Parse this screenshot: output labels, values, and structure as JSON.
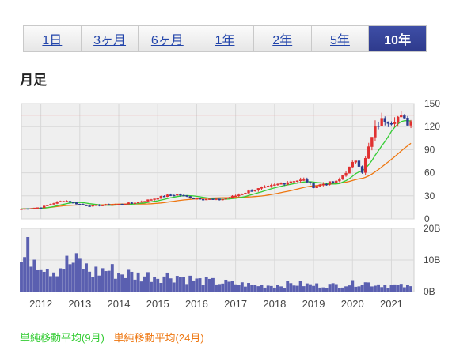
{
  "tabs": [
    {
      "label": "1日",
      "active": false
    },
    {
      "label": "3ヶ月",
      "active": false
    },
    {
      "label": "6ヶ月",
      "active": false
    },
    {
      "label": "1年",
      "active": false
    },
    {
      "label": "2年",
      "active": false
    },
    {
      "label": "5年",
      "active": false
    },
    {
      "label": "10年",
      "active": true
    }
  ],
  "section_title": "月足",
  "colors": {
    "candle_up": "#e03030",
    "candle_down": "#2b3b8f",
    "ma9": "#33cc33",
    "ma24": "#ee7711",
    "volume": "#5a5fb0",
    "ref_line": "#f08080",
    "grid": "#d8d8d8",
    "plot_bg": "#efefef"
  },
  "chart_data": [
    {
      "type": "candlestick",
      "title": "",
      "x_labels": [
        "2012",
        "2013",
        "2014",
        "2015",
        "2016",
        "2017",
        "2018",
        "2019",
        "2020",
        "2021"
      ],
      "x_range": [
        2011.5,
        2021.58
      ],
      "ylim": [
        0,
        150
      ],
      "y_ticks": [
        "150",
        "120",
        "90",
        "60",
        "30",
        "0"
      ],
      "grid": true,
      "reference_line": 135,
      "price_anchors": [
        [
          2011.5,
          13
        ],
        [
          2012.0,
          15
        ],
        [
          2012.3,
          20
        ],
        [
          2012.6,
          24
        ],
        [
          2012.9,
          20
        ],
        [
          2013.2,
          17
        ],
        [
          2013.6,
          18
        ],
        [
          2014.0,
          19
        ],
        [
          2014.4,
          21
        ],
        [
          2014.8,
          25
        ],
        [
          2015.2,
          30
        ],
        [
          2015.5,
          32
        ],
        [
          2015.9,
          27
        ],
        [
          2016.2,
          26
        ],
        [
          2016.6,
          25
        ],
        [
          2017.0,
          30
        ],
        [
          2017.4,
          37
        ],
        [
          2017.8,
          41
        ],
        [
          2018.1,
          45
        ],
        [
          2018.5,
          50
        ],
        [
          2018.8,
          50
        ],
        [
          2019.0,
          42
        ],
        [
          2019.3,
          46
        ],
        [
          2019.6,
          48
        ],
        [
          2019.9,
          65
        ],
        [
          2020.1,
          78
        ],
        [
          2020.25,
          62
        ],
        [
          2020.4,
          90
        ],
        [
          2020.6,
          120
        ],
        [
          2020.8,
          130
        ],
        [
          2021.0,
          128
        ],
        [
          2021.2,
          133
        ],
        [
          2021.4,
          125
        ],
        [
          2021.58,
          128
        ]
      ],
      "legend": [
        {
          "name": "単純移動平均(9月)",
          "color": "#33cc33"
        },
        {
          "name": "単純移動平均(24月)",
          "color": "#ee7711"
        }
      ]
    },
    {
      "type": "bar",
      "title": "",
      "ylim": [
        0,
        20
      ],
      "y_ticks": [
        "20B",
        "10B",
        "0B"
      ],
      "grid": true,
      "volume_anchors": [
        [
          2011.5,
          9
        ],
        [
          2011.7,
          13
        ],
        [
          2012.0,
          10
        ],
        [
          2012.3,
          7
        ],
        [
          2012.7,
          9
        ],
        [
          2013.0,
          9
        ],
        [
          2013.3,
          6
        ],
        [
          2013.7,
          7
        ],
        [
          2014.0,
          6
        ],
        [
          2014.5,
          5
        ],
        [
          2015.0,
          5
        ],
        [
          2015.5,
          5
        ],
        [
          2016.0,
          3.5
        ],
        [
          2016.5,
          3
        ],
        [
          2017.0,
          2.5
        ],
        [
          2017.5,
          2
        ],
        [
          2018.0,
          2
        ],
        [
          2018.5,
          2.5
        ],
        [
          2019.0,
          2
        ],
        [
          2019.5,
          2
        ],
        [
          2020.0,
          2.5
        ],
        [
          2020.2,
          3
        ],
        [
          2020.5,
          2.5
        ],
        [
          2021.0,
          2
        ],
        [
          2021.5,
          1.5
        ]
      ]
    }
  ]
}
